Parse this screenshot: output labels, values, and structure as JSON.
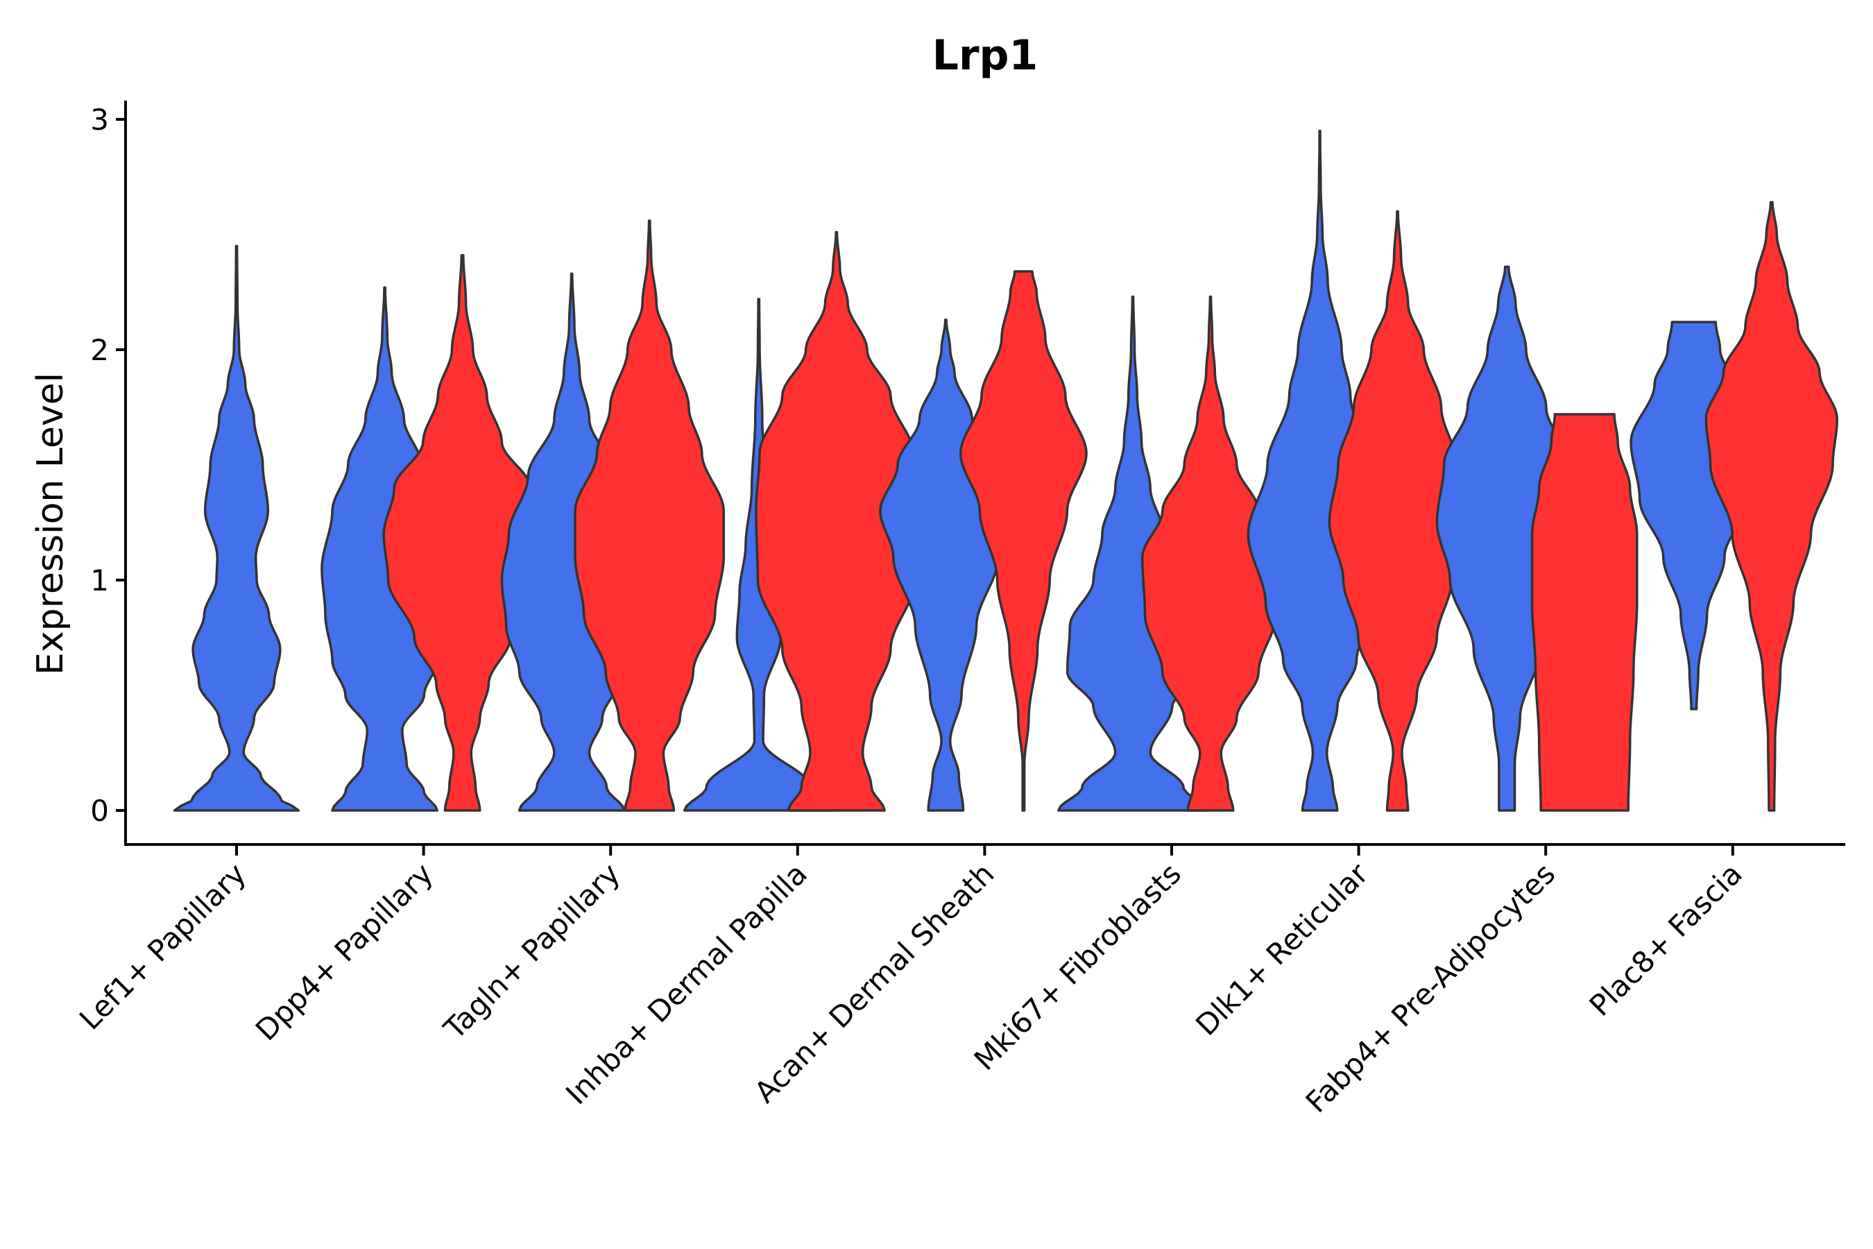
{
  "chart_data": {
    "type": "violin",
    "title": "Lrp1",
    "xlabel": "",
    "ylabel": "Expression Level",
    "ylim": [
      -0.15,
      3.1
    ],
    "yticks": [
      0,
      1,
      2,
      3
    ],
    "grid": false,
    "colors": {
      "group_a": "#4370eb",
      "group_b": "#ff3131",
      "outline": "#333333"
    },
    "categories": [
      "Lef1+ Papillary",
      "Dpp4+ Papillary",
      "Tagln+ Papillary",
      "Inhba+ Dermal Papilla",
      "Acan+ Dermal Sheath",
      "Mki67+ Fibroblasts",
      "Dlk1+ Reticular",
      "Fabp4+ Pre-Adipocytes",
      "Plac8+ Fascia"
    ],
    "violins": [
      {
        "category": "Lef1+ Papillary",
        "group": "a",
        "max": 2.45,
        "profile": [
          [
            0,
            0.71
          ],
          [
            0.05,
            0.5
          ],
          [
            0.15,
            0.28
          ],
          [
            0.25,
            0.08
          ],
          [
            0.4,
            0.2
          ],
          [
            0.55,
            0.43
          ],
          [
            0.7,
            0.5
          ],
          [
            0.85,
            0.37
          ],
          [
            1.0,
            0.23
          ],
          [
            1.1,
            0.22
          ],
          [
            1.3,
            0.36
          ],
          [
            1.5,
            0.3
          ],
          [
            1.7,
            0.2
          ],
          [
            1.85,
            0.1
          ],
          [
            2.0,
            0.03
          ],
          [
            2.2,
            0.01
          ],
          [
            2.45,
            0.005
          ]
        ]
      },
      {
        "category": "Dpp4+ Papillary",
        "group": "a",
        "max": 2.27,
        "profile": [
          [
            0,
            0.6
          ],
          [
            0.08,
            0.45
          ],
          [
            0.2,
            0.25
          ],
          [
            0.35,
            0.2
          ],
          [
            0.5,
            0.45
          ],
          [
            0.65,
            0.6
          ],
          [
            0.85,
            0.68
          ],
          [
            1.05,
            0.72
          ],
          [
            1.3,
            0.6
          ],
          [
            1.5,
            0.42
          ],
          [
            1.7,
            0.22
          ],
          [
            1.9,
            0.08
          ],
          [
            2.05,
            0.03
          ],
          [
            2.27,
            0.005
          ]
        ]
      },
      {
        "category": "Dpp4+ Papillary",
        "group": "b",
        "max": 2.41,
        "profile": [
          [
            0,
            0.2
          ],
          [
            0.1,
            0.15
          ],
          [
            0.25,
            0.1
          ],
          [
            0.4,
            0.2
          ],
          [
            0.55,
            0.3
          ],
          [
            0.75,
            0.55
          ],
          [
            1.0,
            0.85
          ],
          [
            1.2,
            0.9
          ],
          [
            1.4,
            0.78
          ],
          [
            1.6,
            0.45
          ],
          [
            1.8,
            0.28
          ],
          [
            2.0,
            0.12
          ],
          [
            2.2,
            0.04
          ],
          [
            2.41,
            0.01
          ]
        ]
      },
      {
        "category": "Tagln+ Papillary",
        "group": "a",
        "max": 2.33,
        "profile": [
          [
            0,
            0.6
          ],
          [
            0.1,
            0.4
          ],
          [
            0.25,
            0.2
          ],
          [
            0.4,
            0.35
          ],
          [
            0.6,
            0.6
          ],
          [
            0.8,
            0.75
          ],
          [
            1.0,
            0.8
          ],
          [
            1.2,
            0.72
          ],
          [
            1.45,
            0.5
          ],
          [
            1.7,
            0.2
          ],
          [
            1.9,
            0.09
          ],
          [
            2.1,
            0.03
          ],
          [
            2.33,
            0.005
          ]
        ]
      },
      {
        "category": "Tagln+ Papillary",
        "group": "b",
        "max": 2.56,
        "profile": [
          [
            0,
            0.28
          ],
          [
            0.1,
            0.22
          ],
          [
            0.25,
            0.16
          ],
          [
            0.4,
            0.35
          ],
          [
            0.6,
            0.5
          ],
          [
            0.85,
            0.75
          ],
          [
            1.1,
            0.85
          ],
          [
            1.3,
            0.85
          ],
          [
            1.55,
            0.6
          ],
          [
            1.75,
            0.45
          ],
          [
            2.0,
            0.25
          ],
          [
            2.2,
            0.08
          ],
          [
            2.4,
            0.02
          ],
          [
            2.56,
            0.005
          ]
        ]
      },
      {
        "category": "Inhba+ Dermal Papilla",
        "group": "a",
        "max": 2.22,
        "profile": [
          [
            0,
            0.85
          ],
          [
            0.1,
            0.6
          ],
          [
            0.3,
            0.05
          ],
          [
            0.5,
            0.06
          ],
          [
            0.75,
            0.25
          ],
          [
            0.95,
            0.22
          ],
          [
            1.15,
            0.15
          ],
          [
            1.4,
            0.08
          ],
          [
            1.7,
            0.04
          ],
          [
            2.0,
            0.01
          ],
          [
            2.22,
            0.005
          ]
        ]
      },
      {
        "category": "Inhba+ Dermal Papilla",
        "group": "b",
        "max": 2.51,
        "profile": [
          [
            0,
            0.55
          ],
          [
            0.1,
            0.4
          ],
          [
            0.25,
            0.3
          ],
          [
            0.45,
            0.4
          ],
          [
            0.7,
            0.62
          ],
          [
            1.0,
            0.9
          ],
          [
            1.3,
            0.92
          ],
          [
            1.55,
            0.88
          ],
          [
            1.8,
            0.62
          ],
          [
            2.0,
            0.35
          ],
          [
            2.2,
            0.13
          ],
          [
            2.35,
            0.04
          ],
          [
            2.51,
            0.005
          ]
        ]
      },
      {
        "category": "Acan+ Dermal Sheath",
        "group": "a",
        "max": 2.13,
        "profile": [
          [
            0,
            0.2
          ],
          [
            0.15,
            0.15
          ],
          [
            0.3,
            0.05
          ],
          [
            0.5,
            0.18
          ],
          [
            0.8,
            0.35
          ],
          [
            1.1,
            0.6
          ],
          [
            1.3,
            0.75
          ],
          [
            1.5,
            0.55
          ],
          [
            1.7,
            0.3
          ],
          [
            1.9,
            0.1
          ],
          [
            2.0,
            0.05
          ],
          [
            2.13,
            0.005
          ]
        ]
      },
      {
        "category": "Acan+ Dermal Sheath",
        "group": "b",
        "max": 2.34,
        "profile": [
          [
            0,
            0.01
          ],
          [
            0.2,
            0.01
          ],
          [
            0.4,
            0.06
          ],
          [
            0.7,
            0.16
          ],
          [
            1.0,
            0.3
          ],
          [
            1.3,
            0.5
          ],
          [
            1.55,
            0.72
          ],
          [
            1.8,
            0.48
          ],
          [
            2.05,
            0.25
          ],
          [
            2.25,
            0.15
          ],
          [
            2.34,
            0.1
          ]
        ]
      },
      {
        "category": "Mki67+ Fibroblasts",
        "group": "a",
        "max": 2.23,
        "profile": [
          [
            0,
            0.85
          ],
          [
            0.1,
            0.58
          ],
          [
            0.25,
            0.2
          ],
          [
            0.45,
            0.45
          ],
          [
            0.6,
            0.75
          ],
          [
            0.8,
            0.72
          ],
          [
            1.0,
            0.45
          ],
          [
            1.2,
            0.35
          ],
          [
            1.4,
            0.2
          ],
          [
            1.6,
            0.1
          ],
          [
            1.8,
            0.05
          ],
          [
            2.0,
            0.02
          ],
          [
            2.23,
            0.005
          ]
        ]
      },
      {
        "category": "Mki67+ Fibroblasts",
        "group": "b",
        "max": 2.23,
        "profile": [
          [
            0,
            0.26
          ],
          [
            0.1,
            0.2
          ],
          [
            0.25,
            0.12
          ],
          [
            0.4,
            0.3
          ],
          [
            0.6,
            0.55
          ],
          [
            0.85,
            0.75
          ],
          [
            1.1,
            0.78
          ],
          [
            1.3,
            0.55
          ],
          [
            1.5,
            0.3
          ],
          [
            1.7,
            0.15
          ],
          [
            1.9,
            0.05
          ],
          [
            2.05,
            0.02
          ],
          [
            2.23,
            0.005
          ]
        ]
      },
      {
        "category": "Dlk1+ Reticular",
        "group": "a",
        "max": 2.95,
        "profile": [
          [
            0,
            0.2
          ],
          [
            0.1,
            0.15
          ],
          [
            0.25,
            0.08
          ],
          [
            0.45,
            0.2
          ],
          [
            0.65,
            0.42
          ],
          [
            0.9,
            0.62
          ],
          [
            1.2,
            0.82
          ],
          [
            1.5,
            0.6
          ],
          [
            1.8,
            0.35
          ],
          [
            2.0,
            0.25
          ],
          [
            2.3,
            0.09
          ],
          [
            2.5,
            0.03
          ],
          [
            2.7,
            0.01
          ],
          [
            2.95,
            0.002
          ]
        ]
      },
      {
        "category": "Dlk1+ Reticular",
        "group": "b",
        "max": 2.6,
        "profile": [
          [
            0,
            0.12
          ],
          [
            0.1,
            0.1
          ],
          [
            0.25,
            0.05
          ],
          [
            0.5,
            0.22
          ],
          [
            0.75,
            0.45
          ],
          [
            1.0,
            0.62
          ],
          [
            1.25,
            0.78
          ],
          [
            1.5,
            0.68
          ],
          [
            1.75,
            0.5
          ],
          [
            2.0,
            0.3
          ],
          [
            2.2,
            0.12
          ],
          [
            2.4,
            0.04
          ],
          [
            2.6,
            0.005
          ]
        ]
      },
      {
        "category": "Fabp4+ Pre-Adipocytes",
        "group": "a",
        "max": 2.36,
        "profile": [
          [
            0,
            0.09
          ],
          [
            0.2,
            0.09
          ],
          [
            0.4,
            0.15
          ],
          [
            0.7,
            0.38
          ],
          [
            1.0,
            0.65
          ],
          [
            1.25,
            0.8
          ],
          [
            1.5,
            0.72
          ],
          [
            1.75,
            0.45
          ],
          [
            2.0,
            0.22
          ],
          [
            2.2,
            0.1
          ],
          [
            2.36,
            0.02
          ]
        ]
      },
      {
        "category": "Fabp4+ Pre-Adipocytes",
        "group": "b",
        "max": 1.72,
        "profile": [
          [
            0,
            0.5
          ],
          [
            0.3,
            0.52
          ],
          [
            0.6,
            0.56
          ],
          [
            0.9,
            0.6
          ],
          [
            1.2,
            0.6
          ],
          [
            1.4,
            0.52
          ],
          [
            1.6,
            0.38
          ],
          [
            1.72,
            0.34
          ]
        ]
      },
      {
        "category": "Plac8+ Fascia",
        "group": "a",
        "max": 2.12,
        "profile": [
          [
            0.44,
            0.03
          ],
          [
            0.6,
            0.05
          ],
          [
            0.85,
            0.15
          ],
          [
            1.1,
            0.35
          ],
          [
            1.35,
            0.62
          ],
          [
            1.6,
            0.72
          ],
          [
            1.85,
            0.45
          ],
          [
            2.0,
            0.3
          ],
          [
            2.12,
            0.25
          ]
        ]
      },
      {
        "category": "Plac8+ Fascia",
        "group": "b",
        "max": 2.64,
        "profile": [
          [
            0,
            0.03
          ],
          [
            0.3,
            0.04
          ],
          [
            0.6,
            0.1
          ],
          [
            0.9,
            0.25
          ],
          [
            1.2,
            0.45
          ],
          [
            1.5,
            0.7
          ],
          [
            1.7,
            0.75
          ],
          [
            1.9,
            0.55
          ],
          [
            2.1,
            0.3
          ],
          [
            2.3,
            0.18
          ],
          [
            2.5,
            0.06
          ],
          [
            2.64,
            0.01
          ]
        ]
      }
    ]
  }
}
